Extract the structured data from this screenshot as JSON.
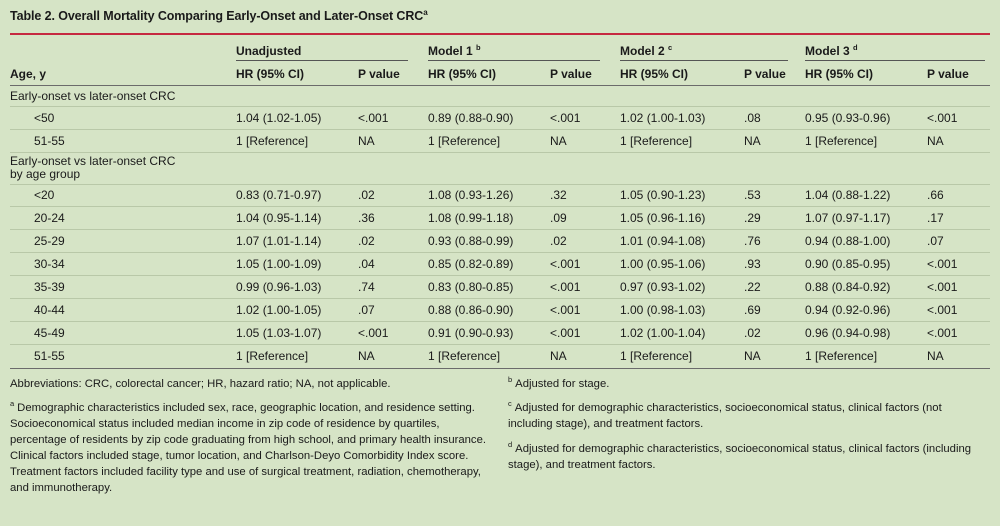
{
  "table": {
    "title": "Table 2. Overall Mortality Comparing Early-Onset and Later-Onset CRC",
    "title_mark": "a",
    "group_headers": [
      {
        "label": "Unadjusted",
        "mark": ""
      },
      {
        "label": "Model 1",
        "mark": "b"
      },
      {
        "label": "Model 2",
        "mark": "c"
      },
      {
        "label": "Model 3",
        "mark": "d"
      }
    ],
    "col_headers": {
      "age": "Age, y",
      "hr": "HR (95% CI)",
      "p": "P value"
    },
    "sections": [
      {
        "label": "Early-onset vs later-onset CRC",
        "rows": [
          {
            "age": "<50",
            "cells": [
              "1.04 (1.02-1.05)",
              "<.001",
              "0.89 (0.88-0.90)",
              "<.001",
              "1.02 (1.00-1.03)",
              ".08",
              "0.95 (0.93-0.96)",
              "<.001"
            ]
          },
          {
            "age": "51-55",
            "cells": [
              "1 [Reference]",
              "NA",
              "1 [Reference]",
              "NA",
              "1 [Reference]",
              "NA",
              "1 [Reference]",
              "NA"
            ]
          }
        ]
      },
      {
        "label": "Early-onset vs later-onset CRC by age group",
        "rows": [
          {
            "age": "<20",
            "cells": [
              "0.83 (0.71-0.97)",
              ".02",
              "1.08 (0.93-1.26)",
              ".32",
              "1.05 (0.90-1.23)",
              ".53",
              "1.04 (0.88-1.22)",
              ".66"
            ]
          },
          {
            "age": "20-24",
            "cells": [
              "1.04 (0.95-1.14)",
              ".36",
              "1.08 (0.99-1.18)",
              ".09",
              "1.05 (0.96-1.16)",
              ".29",
              "1.07 (0.97-1.17)",
              ".17"
            ]
          },
          {
            "age": "25-29",
            "cells": [
              "1.07 (1.01-1.14)",
              ".02",
              "0.93 (0.88-0.99)",
              ".02",
              "1.01 (0.94-1.08)",
              ".76",
              "0.94 (0.88-1.00)",
              ".07"
            ]
          },
          {
            "age": "30-34",
            "cells": [
              "1.05 (1.00-1.09)",
              ".04",
              "0.85 (0.82-0.89)",
              "<.001",
              "1.00 (0.95-1.06)",
              ".93",
              "0.90 (0.85-0.95)",
              "<.001"
            ]
          },
          {
            "age": "35-39",
            "cells": [
              "0.99 (0.96-1.03)",
              ".74",
              "0.83 (0.80-0.85)",
              "<.001",
              "0.97 (0.93-1.02)",
              ".22",
              "0.88 (0.84-0.92)",
              "<.001"
            ]
          },
          {
            "age": "40-44",
            "cells": [
              "1.02 (1.00-1.05)",
              ".07",
              "0.88 (0.86-0.90)",
              "<.001",
              "1.00 (0.98-1.03)",
              ".69",
              "0.94 (0.92-0.96)",
              "<.001"
            ]
          },
          {
            "age": "45-49",
            "cells": [
              "1.05 (1.03-1.07)",
              "<.001",
              "0.91 (0.90-0.93)",
              "<.001",
              "1.02 (1.00-1.04)",
              ".02",
              "0.96 (0.94-0.98)",
              "<.001"
            ]
          },
          {
            "age": "51-55",
            "cells": [
              "1 [Reference]",
              "NA",
              "1 [Reference]",
              "NA",
              "1 [Reference]",
              "NA",
              "1 [Reference]",
              "NA"
            ]
          }
        ]
      }
    ]
  },
  "footnotes": {
    "abbreviations": "Abbreviations: CRC, colorectal cancer; HR, hazard ratio; NA, not applicable.",
    "a": {
      "mark": "a",
      "text": "Demographic characteristics included sex, race, geographic location, and residence setting. Socioeconomical status included median income in zip code of residence by quartiles, percentage of residents by zip code graduating from high school, and primary health insurance. Clinical factors included stage, tumor location, and Charlson-Deyo Comorbidity Index score. Treatment factors included facility type and use of surgical treatment, radiation, chemotherapy, and immunotherapy."
    },
    "b": {
      "mark": "b",
      "text": "Adjusted for stage."
    },
    "c": {
      "mark": "c",
      "text": "Adjusted for demographic characteristics, socioeconomical status, clinical factors (not including stage), and treatment factors."
    },
    "d": {
      "mark": "d",
      "text": "Adjusted for demographic characteristics, socioeconomical status, clinical factors (including stage), and treatment factors."
    }
  },
  "colors": {
    "background": "#d6e4c6",
    "title_rule": "#c62840"
  }
}
